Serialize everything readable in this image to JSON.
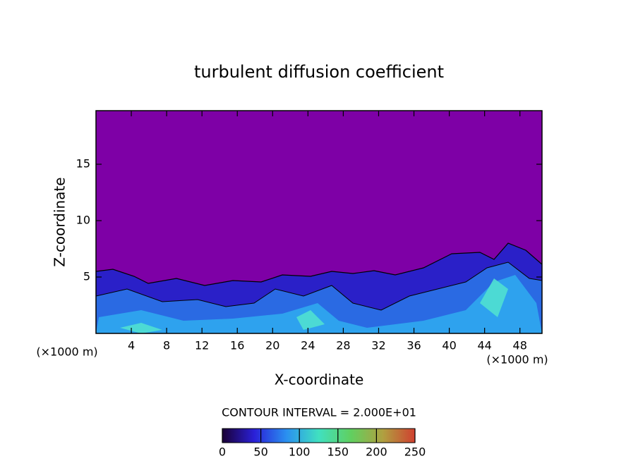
{
  "chart_data": {
    "type": "contour",
    "title": "turbulent diffusion coefficient",
    "xlabel": "X-coordinate",
    "ylabel": "Z-coordinate",
    "xunit": "(×1000 m)",
    "yunit": "(×1000 m)",
    "xlim": [
      0,
      50.5
    ],
    "xticks": [
      4,
      8,
      12,
      16,
      20,
      24,
      28,
      32,
      36,
      40,
      44,
      48
    ],
    "ylim": [
      0,
      19.75
    ],
    "yticks": [
      5,
      10,
      15
    ],
    "background_color": "#7e00a6",
    "contour_interval": "CONTOUR INTERVAL = 2.000E+01",
    "colorbar_lim": [
      0,
      250
    ],
    "colorbar_ticks": [
      0,
      50,
      100,
      150,
      200,
      250
    ],
    "colormap": [
      "#1a0035",
      "#2a20d8",
      "#2a90f0",
      "#40e0c0",
      "#60d060",
      "#b0a040",
      "#d04030"
    ]
  }
}
